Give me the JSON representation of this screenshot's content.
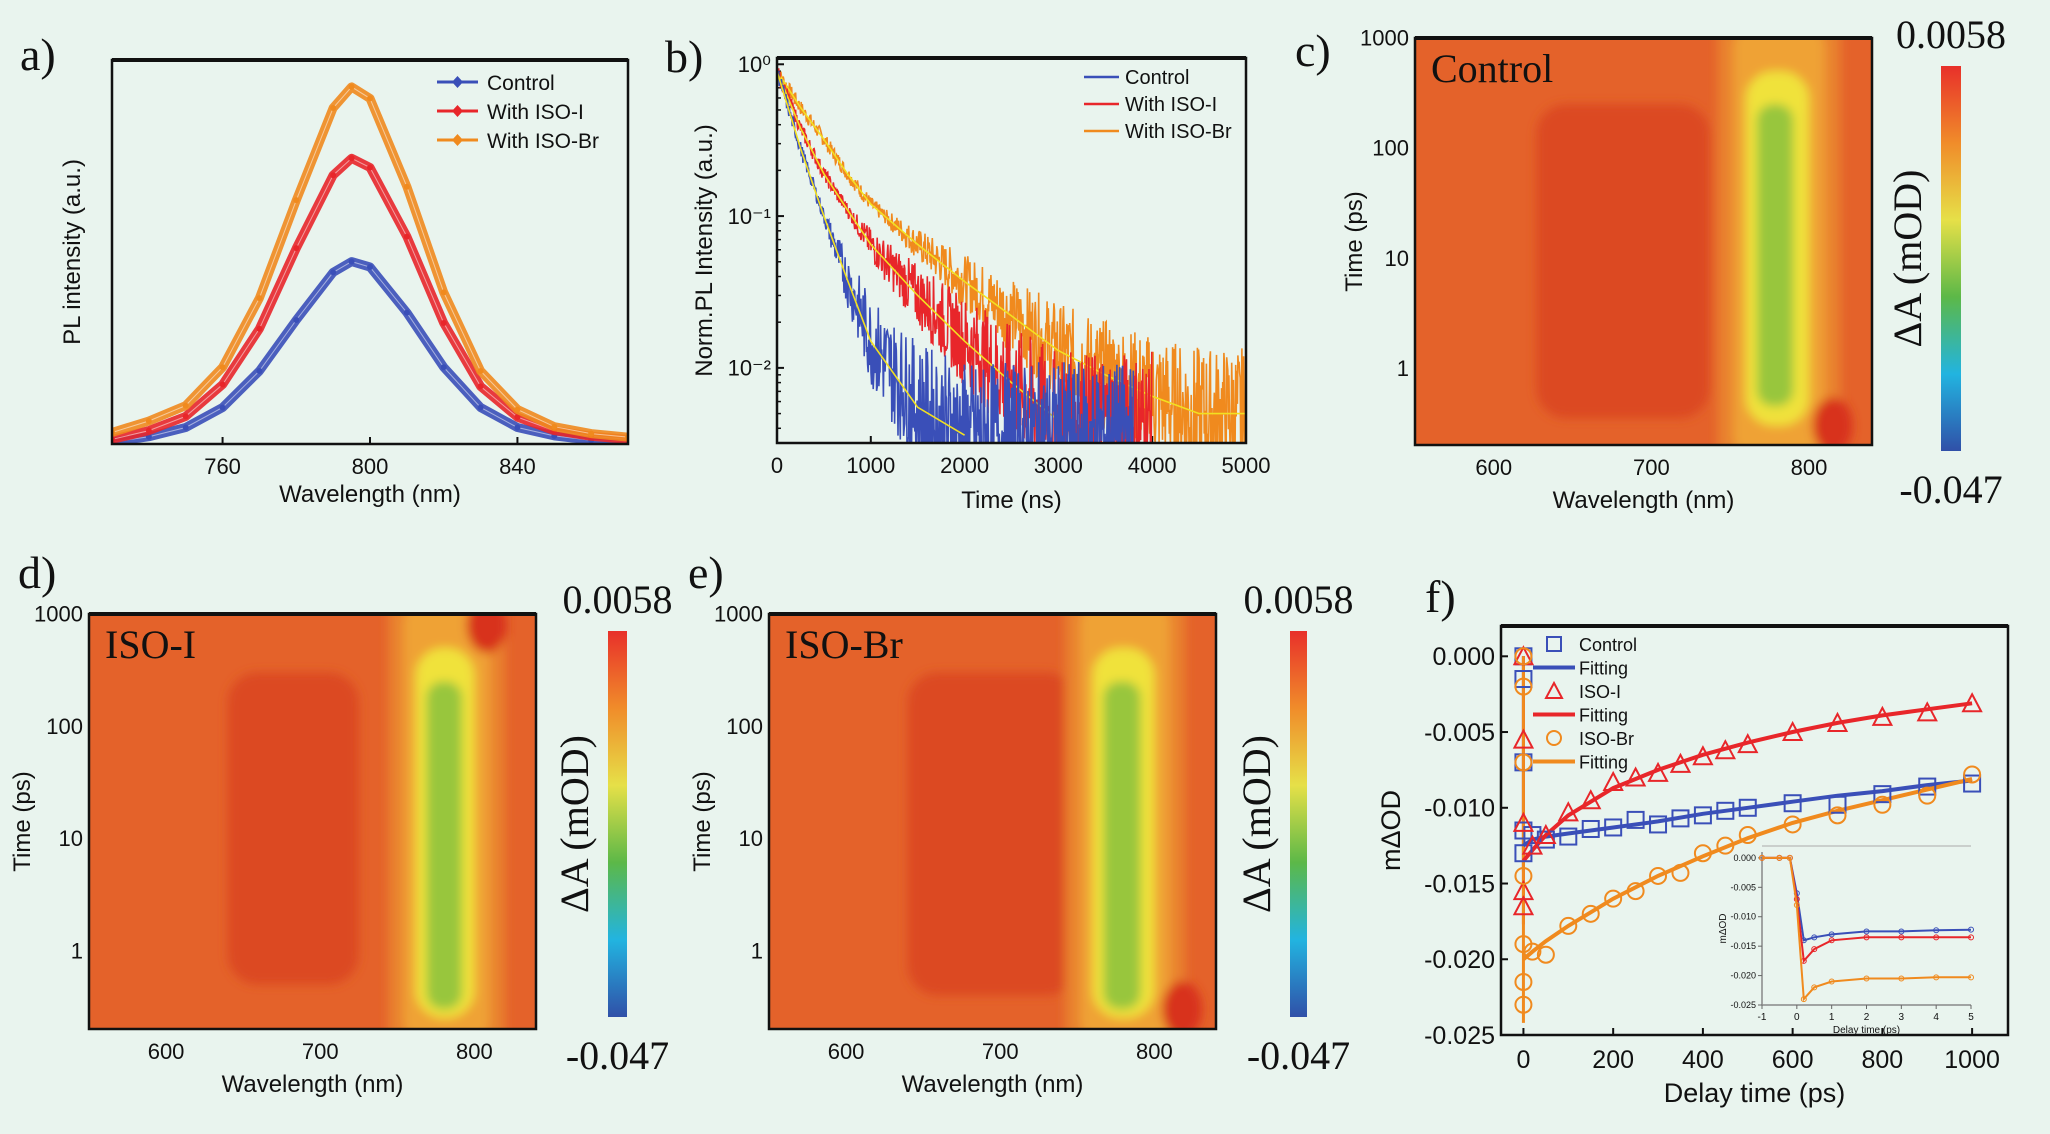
{
  "panel_labels": [
    "a)",
    "b)",
    "c)",
    "d)",
    "e)",
    "f)"
  ],
  "chart_data": [
    {
      "type": "line",
      "xlabel": "Wavelength (nm)",
      "ylabel": "PL intensity (a.u.)",
      "xlim": [
        730,
        870
      ],
      "ylim": [
        0,
        1
      ],
      "xticks": [
        760,
        800,
        840
      ],
      "xtick_labels": [
        "760",
        "800",
        "840"
      ],
      "legend_position": "top-right",
      "x": [
        730,
        740,
        750,
        760,
        770,
        780,
        790,
        795,
        800,
        810,
        820,
        830,
        840,
        850,
        860,
        870
      ],
      "series": [
        {
          "name": "Control",
          "color": "#3a4fb8",
          "values": [
            0.005,
            0.019,
            0.043,
            0.095,
            0.19,
            0.323,
            0.447,
            0.475,
            0.461,
            0.342,
            0.2,
            0.095,
            0.043,
            0.021,
            0.01,
            0.005
          ]
        },
        {
          "name": "With ISO-I",
          "color": "#e8262a",
          "values": [
            0.012,
            0.035,
            0.072,
            0.155,
            0.3,
            0.51,
            0.7,
            0.744,
            0.72,
            0.54,
            0.315,
            0.15,
            0.07,
            0.035,
            0.02,
            0.012
          ]
        },
        {
          "name": "With ISO-Br",
          "color": "#f08a1e",
          "values": [
            0.03,
            0.06,
            0.1,
            0.2,
            0.38,
            0.635,
            0.875,
            0.93,
            0.9,
            0.67,
            0.395,
            0.19,
            0.09,
            0.045,
            0.027,
            0.018
          ]
        }
      ]
    },
    {
      "type": "line",
      "xlabel": "Time (ns)",
      "ylabel": "Norm.PL Intensity (a.u.)",
      "xlim": [
        0,
        5000
      ],
      "ylim": [
        0.0032,
        1.1
      ],
      "y_scale": "log",
      "xticks": [
        0,
        1000,
        2000,
        3000,
        4000,
        5000
      ],
      "xtick_labels": [
        "0",
        "1000",
        "2000",
        "3000",
        "4000",
        "5000"
      ],
      "yticks": [
        1,
        0.1,
        0.01
      ],
      "ytick_labels": [
        "10⁰",
        "10⁻¹",
        "10⁻²"
      ],
      "legend_position": "top-right",
      "fit_color": "#f2e020",
      "series": [
        {
          "name": "Control",
          "color": "#3a4fb8",
          "x": [
            0,
            250,
            500,
            750,
            1000,
            1500,
            2000
          ],
          "values": [
            0.9,
            0.28,
            0.1,
            0.038,
            0.015,
            0.0055,
            0.0036
          ]
        },
        {
          "name": "With ISO-I",
          "color": "#e8262a",
          "x": [
            0,
            250,
            500,
            750,
            1000,
            1500,
            2000,
            2500,
            3000
          ],
          "values": [
            0.9,
            0.38,
            0.19,
            0.11,
            0.065,
            0.03,
            0.015,
            0.008,
            0.0045
          ]
        },
        {
          "name": "With ISO-Br",
          "color": "#f08a1e",
          "x": [
            0,
            250,
            500,
            750,
            1000,
            1500,
            2000,
            2500,
            3000,
            3500,
            4000,
            4500,
            5000
          ],
          "values": [
            0.9,
            0.52,
            0.32,
            0.19,
            0.12,
            0.065,
            0.037,
            0.022,
            0.013,
            0.009,
            0.0065,
            0.005,
            0.005
          ]
        }
      ]
    },
    {
      "type": "heatmap",
      "annotation": "Control",
      "xlabel": "Wavelength (nm)",
      "ylabel": "Time (ps)",
      "xlim": [
        550,
        840
      ],
      "ylim": [
        0.2,
        1000
      ],
      "y_scale": "log",
      "xticks": [
        600,
        700,
        800
      ],
      "xtick_labels": [
        "600",
        "700",
        "800"
      ],
      "yticks": [
        1,
        10,
        100,
        1000
      ],
      "ytick_labels": [
        "1",
        "10",
        "100",
        "1000"
      ],
      "colorbar": {
        "label": "ΔA (mOD)",
        "max_label": "0.0058",
        "min_label": "-0.047",
        "max": 0.0058,
        "min": -0.047,
        "colors": [
          "#e8302a",
          "#f08c2a",
          "#e6e048",
          "#5cb848",
          "#22b4e0",
          "#3050a8"
        ]
      },
      "features": {
        "bleach_band": {
          "wavelength_nm": [
            760,
            800
          ],
          "time_ps": [
            0.3,
            500
          ]
        },
        "bleach_core": {
          "wavelength_nm": [
            767,
            790
          ],
          "time_ps": [
            0.45,
            250
          ]
        },
        "positive_region": {
          "wavelength_nm": [
            627,
            737
          ],
          "time_ps": [
            0.35,
            250
          ]
        },
        "positive_spot": {
          "wavelength_nm": 815,
          "time_ps": 0.3
        }
      }
    },
    {
      "type": "heatmap",
      "annotation": "ISO-I",
      "xlabel": "Wavelength (nm)",
      "ylabel": "Time (ps)",
      "xlim": [
        550,
        840
      ],
      "ylim": [
        0.2,
        1000
      ],
      "y_scale": "log",
      "xticks": [
        600,
        700,
        800
      ],
      "xtick_labels": [
        "600",
        "700",
        "800"
      ],
      "yticks": [
        1,
        10,
        100,
        1000
      ],
      "ytick_labels": [
        "1",
        "10",
        "100",
        "1000"
      ],
      "colorbar": {
        "label": "ΔA (mOD)",
        "max_label": "0.0058",
        "min_label": "-0.047",
        "max": 0.0058,
        "min": -0.047,
        "colors": [
          "#e8302a",
          "#f08c2a",
          "#e6e048",
          "#5cb848",
          "#22b4e0",
          "#3050a8"
        ]
      },
      "features": {
        "bleach_band": {
          "wavelength_nm": [
            762,
            800
          ],
          "time_ps": [
            0.25,
            500
          ]
        },
        "bleach_core": {
          "wavelength_nm": [
            769,
            792
          ],
          "time_ps": [
            0.3,
            250
          ]
        },
        "positive_region": {
          "wavelength_nm": [
            640,
            725
          ],
          "time_ps": [
            0.5,
            300
          ]
        },
        "positive_spot": {
          "wavelength_nm": 808,
          "time_ps": 800
        }
      }
    },
    {
      "type": "heatmap",
      "annotation": "ISO-Br",
      "xlabel": "Wavelength (nm)",
      "ylabel": "Time (ps)",
      "xlim": [
        550,
        840
      ],
      "ylim": [
        0.2,
        1000
      ],
      "y_scale": "log",
      "xticks": [
        600,
        700,
        800
      ],
      "xtick_labels": [
        "600",
        "700",
        "800"
      ],
      "yticks": [
        1,
        10,
        100,
        1000
      ],
      "ytick_labels": [
        "1",
        "10",
        "100",
        "1000"
      ],
      "colorbar": {
        "label": "ΔA (mOD)",
        "max_label": "0.0058",
        "min_label": "-0.047",
        "max": 0.0058,
        "min": -0.047,
        "colors": [
          "#e8302a",
          "#f08c2a",
          "#e6e048",
          "#5cb848",
          "#22b4e0",
          "#3050a8"
        ]
      },
      "features": {
        "bleach_band": {
          "wavelength_nm": [
            760,
            800
          ],
          "time_ps": [
            0.25,
            500
          ]
        },
        "bleach_core": {
          "wavelength_nm": [
            767,
            791
          ],
          "time_ps": [
            0.3,
            250
          ]
        },
        "positive_region": {
          "wavelength_nm": [
            640,
            750
          ],
          "time_ps": [
            0.4,
            300
          ]
        },
        "positive_spot": {
          "wavelength_nm": 818,
          "time_ps": 0.3
        }
      }
    },
    {
      "type": "scatter",
      "xlabel": "Delay time (ps)",
      "ylabel": "mΔOD",
      "xlim": [
        -50,
        1080
      ],
      "ylim": [
        -0.025,
        0.002
      ],
      "xticks": [
        0,
        200,
        400,
        600,
        800,
        1000
      ],
      "xtick_labels": [
        "0",
        "200",
        "400",
        "600",
        "800",
        "1000"
      ],
      "yticks": [
        0,
        -0.005,
        -0.01,
        -0.015,
        -0.02,
        -0.025
      ],
      "ytick_labels": [
        "0.000",
        "-0.005",
        "-0.010",
        "-0.015",
        "-0.020",
        "-0.025"
      ],
      "legend_position": "top-left",
      "legend": [
        "Control",
        "Fitting",
        "ISO-I",
        "Fitting",
        "ISO-Br",
        "Fitting"
      ],
      "series": [
        {
          "name": "Control",
          "marker": "square",
          "color": "#3a4fb8",
          "x": [
            0,
            0,
            0,
            0,
            0,
            20,
            50,
            100,
            150,
            200,
            250,
            300,
            350,
            400,
            450,
            500,
            600,
            700,
            800,
            900,
            1000
          ],
          "values": [
            0,
            -0.0015,
            -0.007,
            -0.0115,
            -0.013,
            -0.0118,
            -0.0121,
            -0.0119,
            -0.0114,
            -0.0113,
            -0.0108,
            -0.0111,
            -0.0107,
            -0.0105,
            -0.0102,
            -0.01,
            -0.0097,
            -0.0098,
            -0.0091,
            -0.0086,
            -0.0084
          ]
        },
        {
          "name": "ISO-I",
          "marker": "triangle",
          "color": "#e8262a",
          "x": [
            0,
            0,
            0,
            0,
            0,
            20,
            50,
            100,
            150,
            200,
            250,
            300,
            350,
            400,
            450,
            500,
            600,
            700,
            800,
            900,
            1000
          ],
          "values": [
            0,
            -0.0055,
            -0.011,
            -0.0155,
            -0.0165,
            -0.0125,
            -0.0118,
            -0.0103,
            -0.0095,
            -0.0083,
            -0.008,
            -0.0077,
            -0.0071,
            -0.0066,
            -0.0062,
            -0.0058,
            -0.005,
            -0.0044,
            -0.004,
            -0.0037,
            -0.0031
          ]
        },
        {
          "name": "ISO-Br",
          "marker": "circle",
          "color": "#f08a1e",
          "x": [
            0,
            0,
            0,
            0,
            0,
            0,
            0,
            20,
            50,
            100,
            150,
            200,
            250,
            300,
            350,
            400,
            450,
            500,
            600,
            700,
            800,
            900,
            1000
          ],
          "values": [
            0,
            -0.002,
            -0.007,
            -0.0145,
            -0.019,
            -0.0215,
            -0.023,
            -0.0195,
            -0.0197,
            -0.0178,
            -0.017,
            -0.016,
            -0.0155,
            -0.0145,
            -0.0143,
            -0.013,
            -0.0125,
            -0.0118,
            -0.0111,
            -0.0105,
            -0.0098,
            -0.0092,
            -0.0078
          ]
        }
      ],
      "fits": [
        {
          "name": "Fitting",
          "color": "#3a4fb8",
          "x": [
            0,
            20,
            50,
            100,
            200,
            300,
            400,
            500,
            600,
            700,
            800,
            900,
            1000
          ],
          "values": [
            -0.0125,
            -0.0121,
            -0.0119,
            -0.0117,
            -0.0113,
            -0.0109,
            -0.0104,
            -0.01,
            -0.0096,
            -0.0092,
            -0.0089,
            -0.0085,
            -0.0082
          ]
        },
        {
          "name": "Fitting",
          "color": "#e8262a",
          "x": [
            0,
            20,
            50,
            100,
            200,
            300,
            400,
            500,
            600,
            700,
            800,
            900,
            1000
          ],
          "values": [
            -0.0135,
            -0.0128,
            -0.0118,
            -0.0105,
            -0.0087,
            -0.0075,
            -0.0065,
            -0.0057,
            -0.005,
            -0.0044,
            -0.0039,
            -0.0035,
            -0.0031
          ]
        },
        {
          "name": "Fitting",
          "color": "#f08a1e",
          "x": [
            0,
            20,
            50,
            100,
            200,
            300,
            400,
            500,
            600,
            700,
            800,
            900,
            1000
          ],
          "values": [
            -0.02,
            -0.0195,
            -0.0188,
            -0.0178,
            -0.016,
            -0.0145,
            -0.0132,
            -0.012,
            -0.011,
            -0.0102,
            -0.0095,
            -0.0088,
            -0.0081
          ]
        }
      ],
      "inset": {
        "xlabel": "Delay time (ps)",
        "ylabel": "mΔOD",
        "xlim": [
          -1,
          5
        ],
        "ylim": [
          -0.025,
          0.001
        ],
        "xticks": [
          -1,
          0,
          1,
          2,
          3,
          4,
          5
        ],
        "xtick_labels": [
          "-1",
          "0",
          "1",
          "2",
          "3",
          "4",
          "5"
        ],
        "yticks": [
          0,
          -0.005,
          -0.01,
          -0.015,
          -0.02,
          -0.025
        ],
        "ytick_labels": [
          "0.000",
          "-0.005",
          "-0.010",
          "-0.015",
          "-0.020",
          "-0.025"
        ],
        "x": [
          -1,
          -0.5,
          -0.2,
          0,
          0.2,
          0.5,
          1,
          2,
          3,
          4,
          5
        ],
        "series": [
          {
            "name": "Control",
            "color": "#3a4fb8",
            "values": [
              0,
              0,
              0,
              -0.006,
              -0.014,
              -0.0135,
              -0.013,
              -0.0125,
              -0.0125,
              -0.0123,
              -0.0122
            ]
          },
          {
            "name": "ISO-I",
            "color": "#e8262a",
            "values": [
              0,
              0,
              0,
              -0.007,
              -0.0175,
              -0.0155,
              -0.014,
              -0.0135,
              -0.0135,
              -0.0135,
              -0.0135
            ]
          },
          {
            "name": "ISO-Br",
            "color": "#f08a1e",
            "values": [
              0,
              0,
              0,
              -0.008,
              -0.024,
              -0.022,
              -0.021,
              -0.0205,
              -0.0205,
              -0.0203,
              -0.0203
            ]
          }
        ]
      }
    }
  ]
}
